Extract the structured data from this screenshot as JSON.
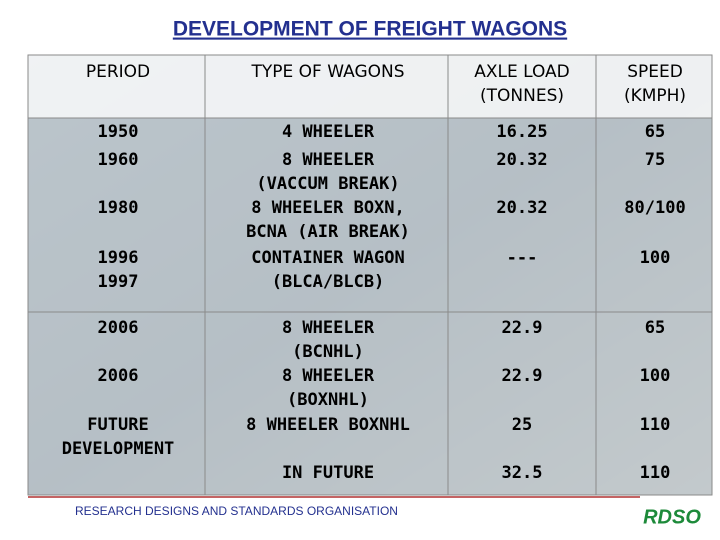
{
  "header": {
    "title": "DEVELOPMENT OF FREIGHT WAGONS"
  },
  "table": {
    "columns": [
      [
        "PERIOD"
      ],
      [
        "TYPE OF WAGONS"
      ],
      [
        "AXLE LOAD",
        "(TONNES)"
      ],
      [
        "SPEED",
        "(KMPH)"
      ]
    ],
    "rows": [
      [
        [
          "1950"
        ],
        [
          "4 WHEELER"
        ],
        [
          "16.25"
        ],
        [
          "65"
        ]
      ],
      [
        [
          "1960"
        ],
        [
          "8 WHEELER",
          "(VACCUM BREAK)"
        ],
        [
          "20.32"
        ],
        [
          "75"
        ]
      ],
      [
        [
          "1980"
        ],
        [
          "8 WHEELER BOXN,",
          "BCNA (AIR BREAK)"
        ],
        [
          "20.32"
        ],
        [
          "80/100"
        ]
      ],
      [
        [
          "1996",
          "1997"
        ],
        [
          "CONTAINER WAGON",
          "(BLCA/BLCB)"
        ],
        [
          "---"
        ],
        [
          "100"
        ]
      ],
      [
        [
          "2006"
        ],
        [
          "8 WHEELER",
          "(BCNHL)"
        ],
        [
          "22.9"
        ],
        [
          "65"
        ]
      ],
      [
        [
          "2006"
        ],
        [
          "8 WHEELER",
          "(BOXNHL)"
        ],
        [
          "22.9"
        ],
        [
          "100"
        ]
      ],
      [
        [
          "FUTURE",
          "DEVELOPMENT"
        ],
        [
          "8 WHEELER BOXNHL"
        ],
        [
          "25"
        ],
        [
          "110"
        ]
      ],
      [
        [],
        [
          "IN FUTURE"
        ],
        [
          "32.5"
        ],
        [
          "110"
        ]
      ]
    ]
  },
  "footer": {
    "organisation": "RESEARCH DESIGNS AND STANDARDS ORGANISATION",
    "logo": "RDSO"
  }
}
